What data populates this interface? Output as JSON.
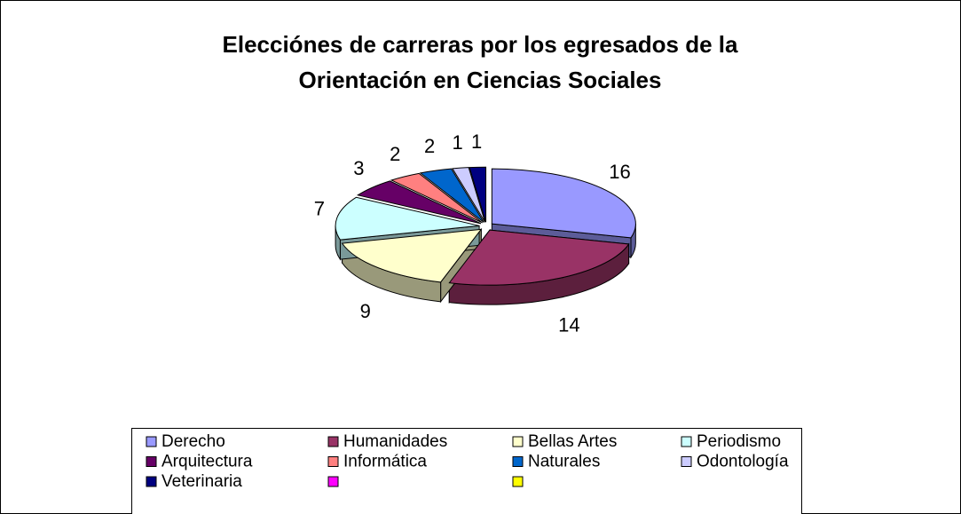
{
  "chart_data": {
    "type": "pie",
    "title": [
      "Elecciónes de carreras por los egresados de la",
      "Orientación en  Ciencias Sociales"
    ],
    "categories": [
      "Derecho",
      "Humanidades",
      "Bellas Artes",
      "Periodismo",
      "Arquitectura",
      "Informática",
      "Naturales",
      "Odontología",
      "Veterinaria",
      null,
      null
    ],
    "values": [
      16,
      14,
      9,
      7,
      3,
      2,
      2,
      1,
      1,
      null,
      null
    ],
    "colors": [
      "#9999ff",
      "#993366",
      "#ffffcc",
      "#ccffff",
      "#660066",
      "#ff8080",
      "#0066cc",
      "#ccccff",
      "#000080",
      "#ff00ff",
      "#ffff00"
    ],
    "legend": "bottom"
  }
}
